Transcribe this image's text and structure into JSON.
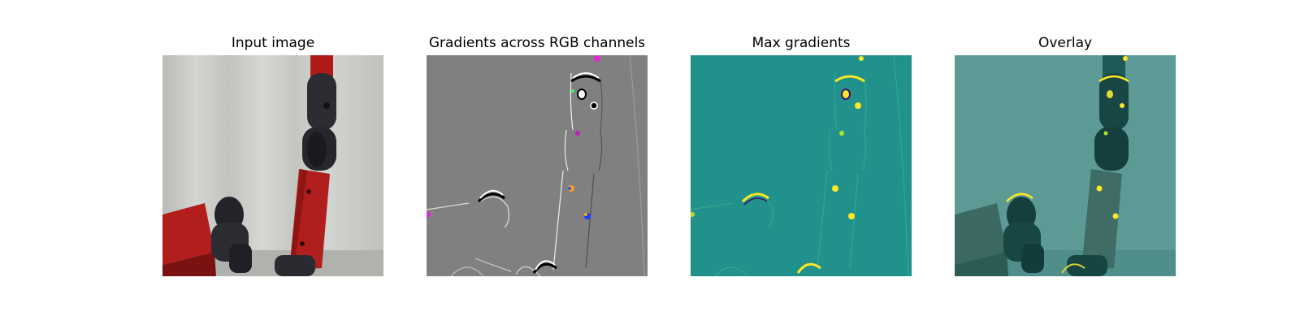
{
  "panels": [
    {
      "title": "Input image"
    },
    {
      "title": "Gradients across RGB channels"
    },
    {
      "title": "Max gradients"
    },
    {
      "title": "Overlay"
    }
  ],
  "colors": {
    "curtain": "#c9cbc7",
    "robot_red": "#b3201e",
    "robot_dark": "#2a2a30",
    "gradient_gray": "#808080",
    "viridis_bg": "#21918c",
    "viridis_high": "#fde725",
    "overlay_tint": "#2a8a86"
  }
}
